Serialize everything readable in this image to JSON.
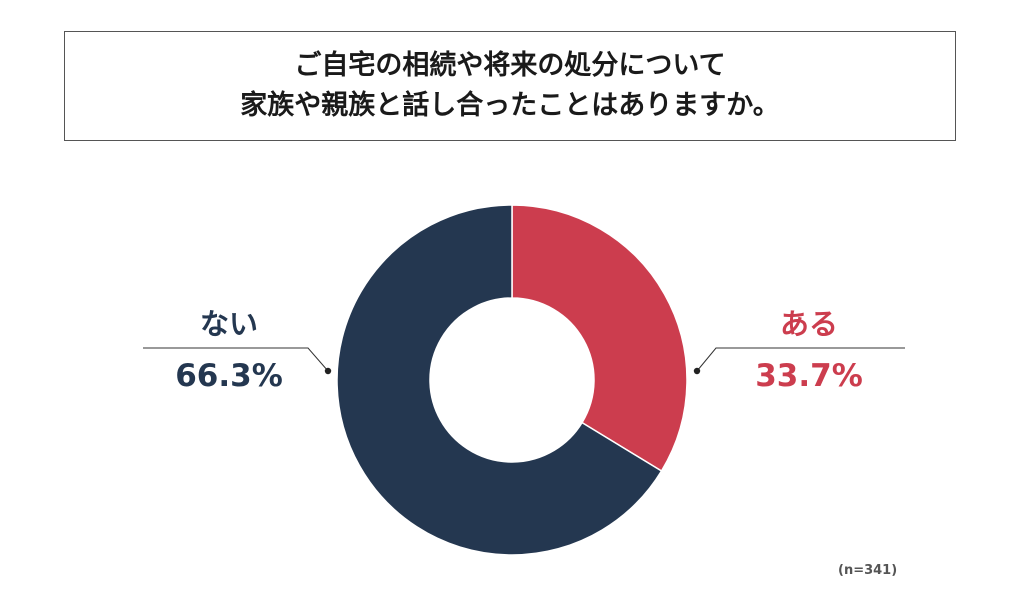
{
  "title": {
    "line1": "ご自宅の相続や将来の処分について",
    "line2": "家族や親族と話し合ったことはありますか。"
  },
  "sample_note": "(n=341)",
  "chart_data": {
    "type": "pie",
    "style": "donut",
    "title": "ご自宅の相続や将来の処分について家族や親族と話し合ったことはありますか。",
    "categories": [
      "ある",
      "ない"
    ],
    "values": [
      33.7,
      66.3
    ],
    "value_labels": [
      "33.7%",
      "66.3%"
    ],
    "unit": "%",
    "colors": [
      "#cc3d4e",
      "#243750"
    ],
    "start_angle": "top",
    "direction": "clockwise",
    "legend": "none (direct labels)"
  }
}
